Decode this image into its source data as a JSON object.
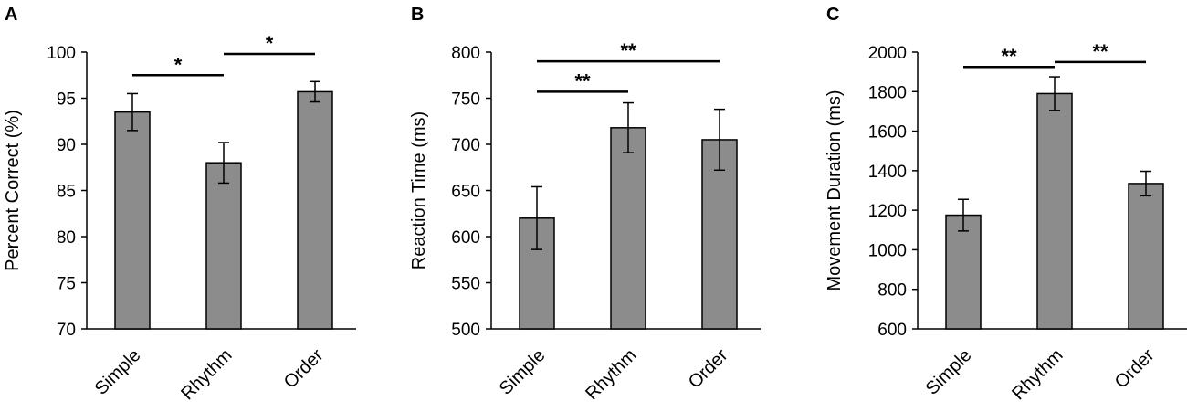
{
  "chart_data": [
    {
      "type": "bar",
      "panel": "A",
      "ylabel": "Percent Correct (%)",
      "ylim": [
        70,
        100
      ],
      "yticks": [
        70,
        75,
        80,
        85,
        90,
        95,
        100
      ],
      "categories": [
        "Simple",
        "Rhythm",
        "Order"
      ],
      "values": [
        93.5,
        88.0,
        95.7
      ],
      "errors": [
        2.0,
        2.2,
        1.1
      ],
      "bar_color": "#8c8c8c",
      "significance": [
        {
          "from": 0,
          "to": 1,
          "label": "*",
          "y": 97.5
        },
        {
          "from": 1,
          "to": 2,
          "label": "*",
          "y": 99.8
        }
      ]
    },
    {
      "type": "bar",
      "panel": "B",
      "ylabel": "Reaction Time (ms)",
      "ylim": [
        500,
        800
      ],
      "yticks": [
        500,
        550,
        600,
        650,
        700,
        750,
        800
      ],
      "categories": [
        "Simple",
        "Rhythm",
        "Order"
      ],
      "values": [
        620,
        718,
        705
      ],
      "errors": [
        34,
        27,
        33
      ],
      "bar_color": "#8c8c8c",
      "significance": [
        {
          "from": 0,
          "to": 1,
          "label": "**",
          "y": 757
        },
        {
          "from": 0,
          "to": 2,
          "label": "**",
          "y": 790
        }
      ]
    },
    {
      "type": "bar",
      "panel": "C",
      "ylabel": "Movement Duration (ms)",
      "ylim": [
        600,
        2000
      ],
      "yticks": [
        600,
        800,
        1000,
        1200,
        1400,
        1600,
        1800,
        2000
      ],
      "categories": [
        "Simple",
        "Rhythm",
        "Order"
      ],
      "values": [
        1175,
        1790,
        1335
      ],
      "errors": [
        80,
        85,
        62
      ],
      "bar_color": "#8c8c8c",
      "significance": [
        {
          "from": 0,
          "to": 1,
          "label": "**",
          "y": 1925
        },
        {
          "from": 1,
          "to": 2,
          "label": "**",
          "y": 1950
        }
      ]
    }
  ]
}
